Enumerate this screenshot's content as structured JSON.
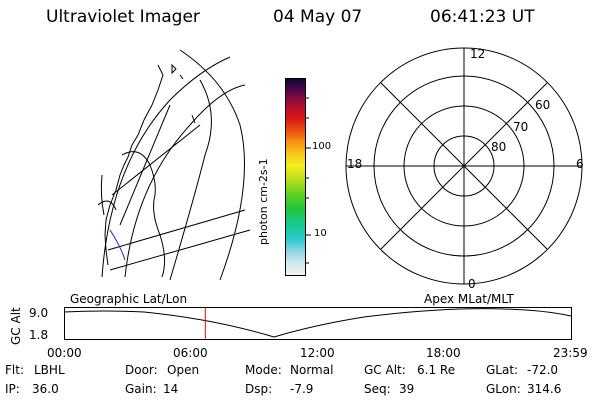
{
  "header": {
    "instrument": "Ultraviolet Imager",
    "date": "04 May 07",
    "time": "06:41:23 UT"
  },
  "colorbar": {
    "label": "photon cm-2s-1",
    "ticks": [
      "100",
      "10"
    ]
  },
  "polar_plot": {
    "labels": {
      "top": "12",
      "left": "18",
      "right": "6",
      "bottom": "0",
      "lat60": "60",
      "lat70": "70",
      "lat80": "80"
    }
  },
  "orbit_panel": {
    "left_title": "Geographic Lat/Lon",
    "right_title": "Apex MLat/MLT",
    "ylabel": "GC Alt",
    "ymax": "9.0",
    "ymin": "1.8",
    "x_ticks": [
      "00:00",
      "06:00",
      "12:00",
      "18:00",
      "23:59"
    ],
    "current_time_hours": 6.69
  },
  "info": {
    "filt_label": "Flt:",
    "filt_value": "LBHL",
    "door_label": "Door:",
    "door_value": "Open",
    "mode_label": "Mode:",
    "mode_value": "Normal",
    "gcalt_label": "GC Alt:",
    "gcalt_value": "6.1 Re",
    "glat_label": "GLat:",
    "glat_value": "-72.0",
    "ip_label": "IP:",
    "ip_value": "36.0",
    "gain_label": "Gain:",
    "gain_value": "14",
    "dsp_label": "Dsp:",
    "dsp_value": "-7.9",
    "seq_label": "Seq:",
    "seq_value": "39",
    "glon_label": "GLon:",
    "glon_value": "314.6"
  },
  "colors": {
    "orbit_marker": "#e01010",
    "track": "#2020c0"
  }
}
